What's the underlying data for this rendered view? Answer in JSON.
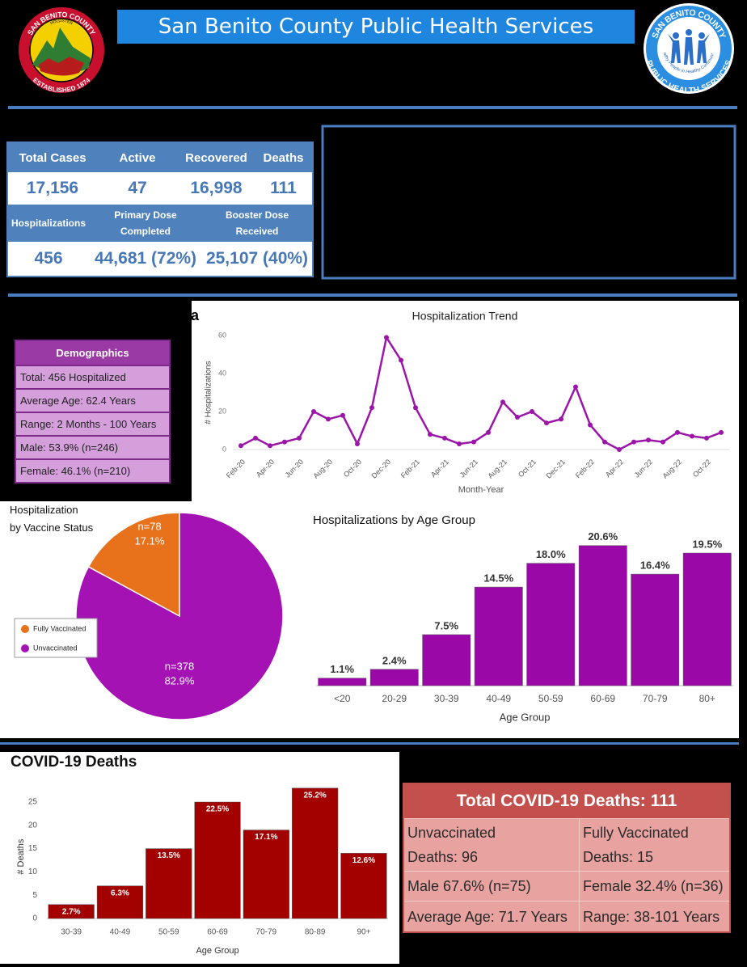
{
  "header": {
    "title": "San Benito County Public Health Services",
    "left_logo": {
      "top": "SAN BENITO COUNTY",
      "city": "HOLLISTER",
      "bottom": "ESTABLISHED 1874"
    },
    "right_logo": {
      "top": "SAN BENITO COUNTY",
      "middle": "Healthy People in Healthy Communities",
      "bottom": "PUBLIC HEALTH SERVICES"
    }
  },
  "summary": {
    "row1_headers": [
      "Total Cases",
      "Active",
      "Recovered",
      "Deaths"
    ],
    "row1_values": [
      "17,156",
      "47",
      "16,998",
      "111"
    ],
    "row2_headers": [
      "Hospitalizations",
      "Primary Dose Completed",
      "Booster Dose Received"
    ],
    "row2_values": [
      "456",
      "44,681 (72%)",
      "25,107 (40%)"
    ]
  },
  "section_heading_fragment": "a",
  "demographics": {
    "title": "Demographics",
    "rows": [
      "Total: 456 Hospitalized",
      "Average Age: 62.4 Years",
      "Range: 2 Months - 100 Years",
      "Male: 53.9% (n=246)",
      "Female: 46.1% (n=210)"
    ]
  },
  "chart_data": [
    {
      "type": "line",
      "title": "Hospitalization Trend",
      "x_label": "Month-Year",
      "y_label": "# Hospitalizations",
      "categories": [
        "Feb-20",
        null,
        "Apr-20",
        null,
        "Jun-20",
        null,
        "Aug-20",
        null,
        "Oct-20",
        null,
        "Dec-20",
        null,
        "Feb-21",
        null,
        "Apr-21",
        null,
        "Jun-21",
        null,
        "Aug-21",
        null,
        "Oct-21",
        null,
        "Dec-21",
        null,
        "Feb-22",
        null,
        "Apr-22",
        null,
        "Jun-22",
        null,
        "Aug-22",
        null,
        "Oct-22",
        null
      ],
      "values": [
        2,
        6,
        2,
        4,
        6,
        20,
        16,
        18,
        3,
        22,
        59,
        47,
        22,
        8,
        6,
        3,
        4,
        9,
        25,
        17,
        20,
        14,
        16,
        33,
        13,
        4,
        0,
        4,
        5,
        4,
        9,
        7,
        6,
        9
      ],
      "color": "#9b16a8",
      "ylim": [
        0,
        60
      ],
      "yticks": [
        0,
        20,
        40,
        60
      ],
      "grid": false
    },
    {
      "type": "pie",
      "title": [
        "Hospitalization",
        "by Vaccine Status"
      ],
      "categories": [
        "Fully Vaccinated",
        "Unvaccinated"
      ],
      "values": [
        17.1,
        82.9
      ],
      "value_labels": [
        "17.1%",
        "82.9%"
      ],
      "count_labels": [
        "n=78",
        "n=378"
      ],
      "colors": [
        "#e8721c",
        "#a412b4"
      ],
      "legend": "left"
    },
    {
      "type": "bar",
      "title": "Hospitalizations by Age Group",
      "x_label": "Age Group",
      "categories": [
        "<20",
        "20-29",
        "30-39",
        "40-49",
        "50-59",
        "60-69",
        "70-79",
        "80+"
      ],
      "values": [
        1.1,
        2.4,
        7.5,
        14.5,
        18.0,
        20.6,
        16.4,
        19.5
      ],
      "value_labels": [
        "1.1%",
        "2.4%",
        "7.5%",
        "14.5%",
        "18.0%",
        "20.6%",
        "16.4%",
        "19.5%"
      ],
      "color": "#9a08a8",
      "ylim": [
        0,
        22
      ]
    },
    {
      "type": "bar",
      "title": "COVID-19 Deaths",
      "x_label": "Age Group",
      "y_label": "# Deaths",
      "categories": [
        "30-39",
        "40-49",
        "50-59",
        "60-69",
        "70-79",
        "80-89",
        "90+"
      ],
      "values": [
        3,
        7,
        15,
        25,
        19,
        28,
        14
      ],
      "share_labels": [
        "2.7%",
        "6.3%",
        "13.5%",
        "22.5%",
        "17.1%",
        "25.2%",
        "12.6%"
      ],
      "color": "#a30000",
      "ylim": [
        0,
        30
      ],
      "yticks": [
        0,
        5,
        10,
        15,
        20,
        25
      ]
    }
  ],
  "deaths_table": {
    "title": "Total COVID-19 Deaths: 111",
    "rows": [
      [
        "Unvaccinated Deaths: 96",
        "Fully Vaccinated Deaths: 15"
      ],
      [
        "Male 67.6% (n=75)",
        "Female 32.4% (n=36)"
      ],
      [
        "Average Age: 71.7 Years",
        "Range: 38-101 Years"
      ]
    ]
  }
}
